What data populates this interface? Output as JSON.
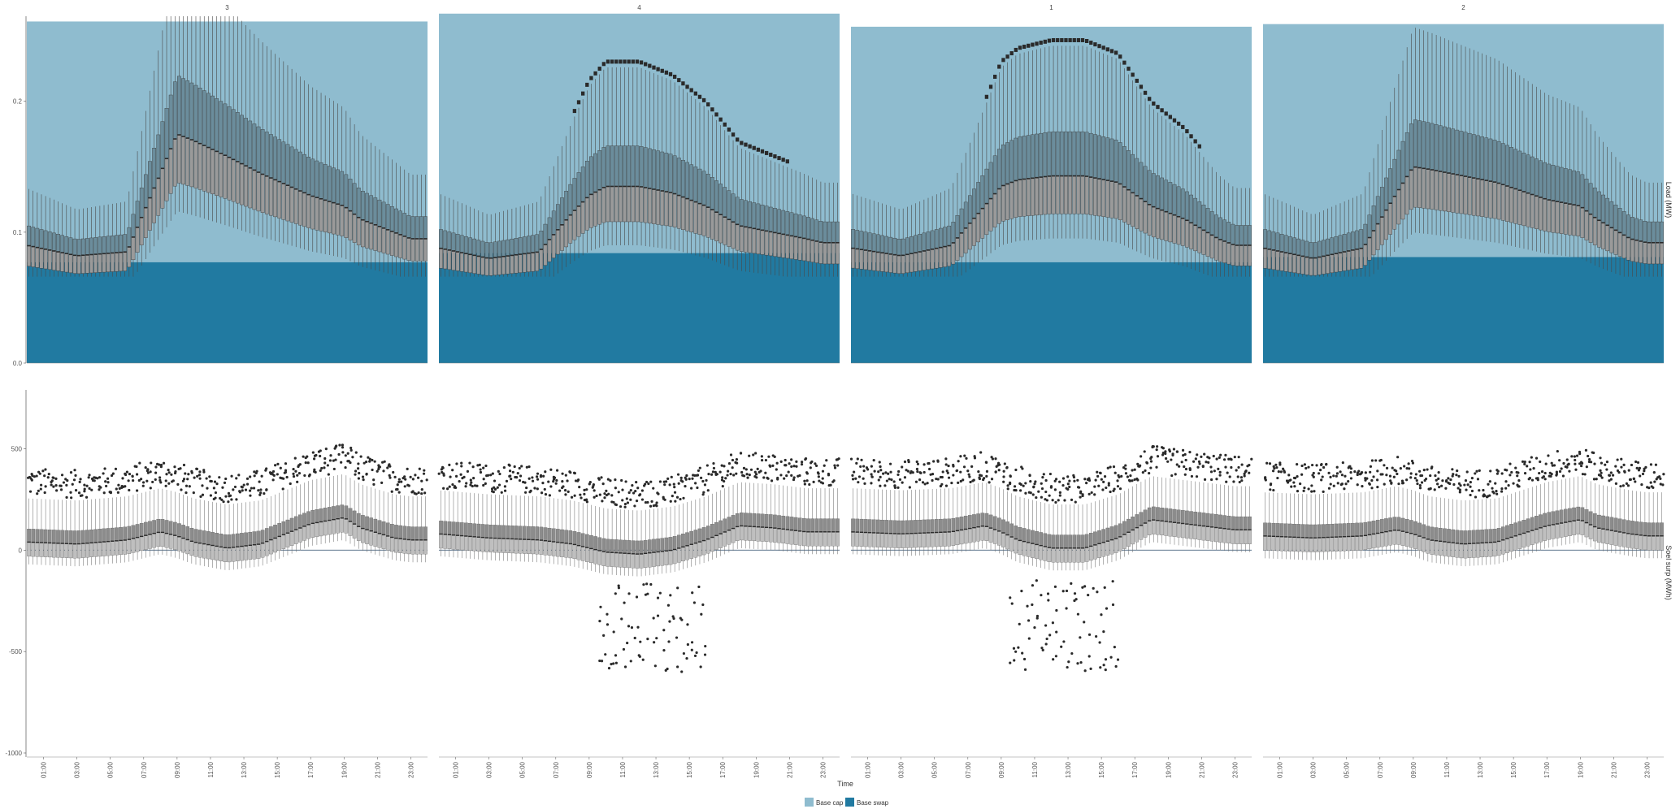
{
  "chart_data": {
    "type": "box",
    "facets": [
      "3",
      "4",
      "1",
      "2"
    ],
    "x_ticks": [
      "01:00",
      "03:00",
      "05:00",
      "07:00",
      "09:00",
      "11:00",
      "13:00",
      "15:00",
      "17:00",
      "19:00",
      "21:00",
      "23:00"
    ],
    "xlabel": "Time",
    "legend": [
      {
        "label": "Base cap",
        "color": "#8fbccf"
      },
      {
        "label": "Base swap",
        "color": "#217aa1"
      }
    ],
    "legend_position": "bottom",
    "colors": {
      "box_top": "#6b8d9c",
      "box_bottom": "#bfbfbf",
      "median": "#2a2a2a",
      "outlier": "#2a2a2a"
    },
    "top_panel": {
      "ylabel": "Load (MW)",
      "ylim": [
        0,
        0.265
      ],
      "y_ticks": [
        {
          "value": 0.0,
          "label": "0.0"
        },
        {
          "value": 0.1,
          "label": "0.1"
        },
        {
          "value": 0.2,
          "label": "0.2"
        }
      ],
      "base_swap": [
        0.077,
        0.084,
        0.077,
        0.081
      ],
      "base_cap": [
        0.261,
        0.267,
        0.257,
        0.259
      ],
      "median_profiles": [
        {
          "facet": "3",
          "hour": [
            0,
            3,
            6,
            8,
            9,
            10,
            12,
            14,
            17,
            19,
            20,
            22,
            23
          ],
          "value": [
            0.09,
            0.082,
            0.085,
            0.145,
            0.175,
            0.17,
            0.158,
            0.145,
            0.128,
            0.12,
            0.11,
            0.1,
            0.095
          ]
        },
        {
          "facet": "4",
          "hour": [
            0,
            3,
            6,
            8,
            9,
            10,
            12,
            14,
            16,
            18,
            20,
            22,
            23
          ],
          "value": [
            0.088,
            0.08,
            0.085,
            0.115,
            0.128,
            0.135,
            0.135,
            0.13,
            0.12,
            0.105,
            0.1,
            0.095,
            0.092
          ]
        },
        {
          "facet": "1",
          "hour": [
            0,
            3,
            6,
            8,
            9,
            10,
            12,
            14,
            16,
            18,
            20,
            22,
            23
          ],
          "value": [
            0.088,
            0.082,
            0.09,
            0.12,
            0.135,
            0.14,
            0.143,
            0.143,
            0.138,
            0.12,
            0.11,
            0.095,
            0.09
          ]
        },
        {
          "facet": "2",
          "hour": [
            0,
            3,
            6,
            8,
            9,
            10,
            12,
            14,
            17,
            19,
            20,
            22,
            23
          ],
          "value": [
            0.088,
            0.08,
            0.088,
            0.13,
            0.15,
            0.148,
            0.143,
            0.138,
            0.125,
            0.12,
            0.11,
            0.095,
            0.092
          ]
        }
      ]
    },
    "bottom_panel": {
      "ylabel": "Soel surp (MWh)",
      "ylim": [
        -1020,
        790
      ],
      "y_ticks": [
        {
          "value": 500,
          "label": "500"
        },
        {
          "value": 0,
          "label": "0"
        },
        {
          "value": -500,
          "label": "-500"
        },
        {
          "value": -1000,
          "label": "-1000"
        }
      ],
      "median_profiles": [
        {
          "facet": "3",
          "hour": [
            0,
            3,
            6,
            8,
            9,
            10,
            12,
            14,
            17,
            19,
            20,
            22,
            23
          ],
          "value": [
            40,
            30,
            50,
            90,
            70,
            40,
            10,
            30,
            130,
            160,
            110,
            60,
            50
          ]
        },
        {
          "facet": "4",
          "hour": [
            0,
            3,
            6,
            8,
            9,
            10,
            12,
            14,
            16,
            18,
            20,
            22,
            23
          ],
          "value": [
            80,
            60,
            50,
            30,
            10,
            -10,
            -20,
            0,
            50,
            120,
            110,
            90,
            90
          ]
        },
        {
          "facet": "1",
          "hour": [
            0,
            3,
            6,
            8,
            9,
            10,
            12,
            14,
            16,
            18,
            20,
            22,
            23
          ],
          "value": [
            90,
            80,
            90,
            120,
            90,
            50,
            10,
            10,
            60,
            150,
            130,
            110,
            100
          ]
        },
        {
          "facet": "2",
          "hour": [
            0,
            3,
            6,
            8,
            9,
            10,
            12,
            14,
            17,
            19,
            20,
            22,
            23
          ],
          "value": [
            70,
            60,
            70,
            100,
            80,
            50,
            30,
            40,
            120,
            150,
            110,
            80,
            70
          ]
        }
      ]
    }
  }
}
